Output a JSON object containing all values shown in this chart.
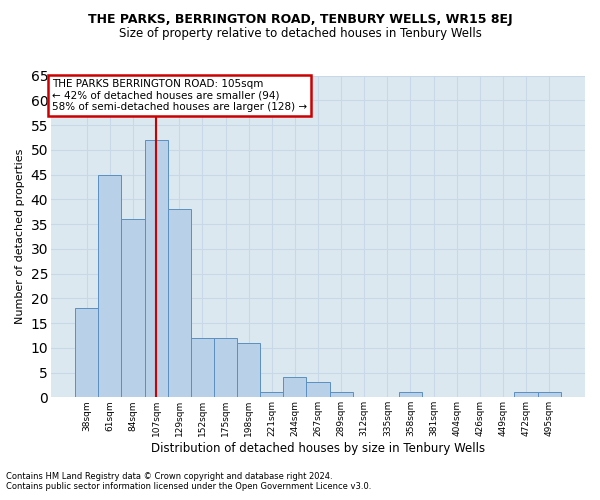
{
  "title": "THE PARKS, BERRINGTON ROAD, TENBURY WELLS, WR15 8EJ",
  "subtitle": "Size of property relative to detached houses in Tenbury Wells",
  "xlabel": "Distribution of detached houses by size in Tenbury Wells",
  "ylabel": "Number of detached properties",
  "footnote1": "Contains HM Land Registry data © Crown copyright and database right 2024.",
  "footnote2": "Contains public sector information licensed under the Open Government Licence v3.0.",
  "categories": [
    "38sqm",
    "61sqm",
    "84sqm",
    "107sqm",
    "129sqm",
    "152sqm",
    "175sqm",
    "198sqm",
    "221sqm",
    "244sqm",
    "267sqm",
    "289sqm",
    "312sqm",
    "335sqm",
    "358sqm",
    "381sqm",
    "404sqm",
    "426sqm",
    "449sqm",
    "472sqm",
    "495sqm"
  ],
  "values": [
    18,
    45,
    36,
    52,
    38,
    12,
    12,
    11,
    1,
    4,
    3,
    1,
    0,
    0,
    1,
    0,
    0,
    0,
    0,
    1,
    1
  ],
  "bar_color": "#b8d0e8",
  "bar_edge_color": "#5a8fc0",
  "grid_color": "#c8d8e8",
  "bg_color": "#dce8f0",
  "vline_x_index": 3,
  "annotation_title": "THE PARKS BERRINGTON ROAD: 105sqm",
  "annotation_line1": "← 42% of detached houses are smaller (94)",
  "annotation_line2": "58% of semi-detached houses are larger (128) →",
  "annotation_box_color": "#ffffff",
  "annotation_box_edge": "#cc0000",
  "ylim": [
    0,
    65
  ],
  "yticks": [
    0,
    5,
    10,
    15,
    20,
    25,
    30,
    35,
    40,
    45,
    50,
    55,
    60,
    65
  ]
}
